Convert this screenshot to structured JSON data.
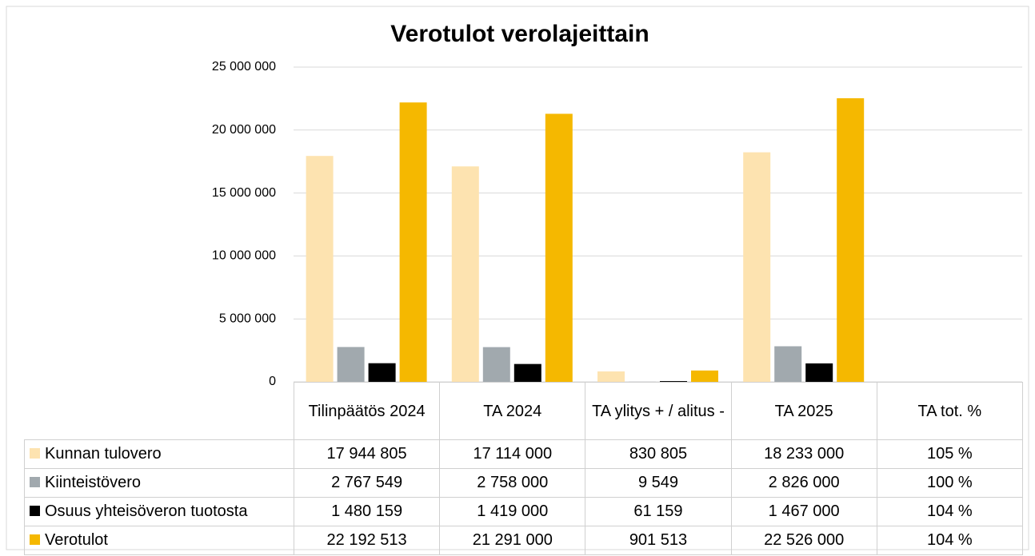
{
  "chart_data": {
    "type": "bar",
    "title": "Verotulot verolajeittain",
    "categories": [
      "Tilinpäätös 2024",
      "TA 2024",
      "TA ylitys + / alitus -",
      "TA 2025",
      "TA tot. %"
    ],
    "series": [
      {
        "name": "Kunnan tulovero",
        "color": "#fde3b0",
        "values": [
          17944805,
          17114000,
          830805,
          18233000,
          1.05
        ],
        "value_labels": [
          "17 944 805",
          "17 114 000",
          "830 805",
          "18 233 000",
          "105 %"
        ]
      },
      {
        "name": "Kiinteistövero",
        "color": "#a1a9ae",
        "values": [
          2767549,
          2758000,
          9549,
          2826000,
          1.0
        ],
        "value_labels": [
          "2 767 549",
          "2 758 000",
          "9 549",
          "2 826 000",
          "100 %"
        ]
      },
      {
        "name": "Osuus yhteisöveron tuotosta",
        "color": "#000000",
        "values": [
          1480159,
          1419000,
          61159,
          1467000,
          1.04
        ],
        "value_labels": [
          "1 480 159",
          "1 419 000",
          "61 159",
          "1 467 000",
          "104 %"
        ]
      },
      {
        "name": "Verotulot",
        "color": "#f5b800",
        "values": [
          22192513,
          21291000,
          901513,
          22526000,
          1.04
        ],
        "value_labels": [
          "22 192 513",
          "21 291 000",
          "901 513",
          "22 526 000",
          "104 %"
        ]
      }
    ],
    "ylim": [
      0,
      25000000
    ],
    "yticks": [
      0,
      {
        "value": 5000000,
        "label": "5 000 000"
      },
      {
        "value": 10000000,
        "label": "10 000 000"
      },
      {
        "value": 15000000,
        "label": "15 000 000"
      },
      {
        "value": 20000000,
        "label": "20 000 000"
      },
      {
        "value": 25000000,
        "label": "25 000 000"
      }
    ],
    "grid": true
  }
}
